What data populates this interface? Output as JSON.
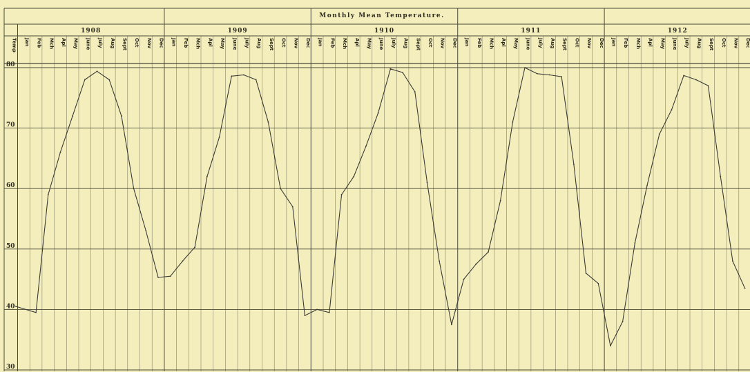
{
  "chart_data": {
    "type": "line",
    "title": "Monthly Mean Temperature.",
    "temp_label": "Temp",
    "ylim": [
      30,
      80
    ],
    "yticks": [
      30,
      40,
      50,
      60,
      70,
      80
    ],
    "ytick_labels": [
      "30",
      "40",
      "50",
      "60",
      "70",
      "80"
    ],
    "years": [
      {
        "label": "1908",
        "start_month": 0
      },
      {
        "label": "1909",
        "start_month": 12
      },
      {
        "label": "1910",
        "start_month": 24
      },
      {
        "label": "1911",
        "start_month": 36
      },
      {
        "label": "1912",
        "start_month": 48
      }
    ],
    "months": [
      "Jan",
      "Feb",
      "Mch",
      "Apl",
      "May",
      "June",
      "July",
      "Aug",
      "Sept",
      "Oct",
      "Nov",
      "Dec",
      "Jan",
      "Feb",
      "Mch",
      "Apl",
      "May",
      "June",
      "July",
      "Aug",
      "Sept",
      "Oct",
      "Nov",
      "Dec",
      "Jan",
      "Feb",
      "Mch",
      "Apl",
      "May",
      "June",
      "July",
      "Aug",
      "Sept",
      "Oct",
      "Nov",
      "Dec",
      "Jan",
      "Feb",
      "Mch",
      "Apl",
      "May",
      "June",
      "July",
      "Aug",
      "Sept",
      "Oct",
      "Nov",
      "Dec",
      "Jan",
      "Feb",
      "Mch",
      "Apl",
      "May",
      "June",
      "July",
      "Aug",
      "Sept",
      "Oct",
      "Nov",
      "Dec"
    ],
    "values": [
      40.5,
      39.5,
      59,
      66,
      72,
      78,
      79.4,
      78,
      72,
      60,
      53,
      45.3,
      45.5,
      48,
      50.3,
      62,
      68.5,
      78.6,
      78.8,
      78,
      71,
      60,
      57,
      39,
      40,
      39.5,
      59,
      62,
      67,
      72.5,
      79.8,
      79.2,
      76,
      61,
      48,
      37.5,
      45,
      47.5,
      49.5,
      58,
      71,
      80,
      79,
      78.8,
      78.5,
      64,
      46,
      44.3,
      34,
      38,
      51,
      60.5,
      69,
      73,
      78.7,
      78,
      77,
      62,
      48,
      43.5
    ],
    "grid": true,
    "line_color": "#3a3a36"
  }
}
